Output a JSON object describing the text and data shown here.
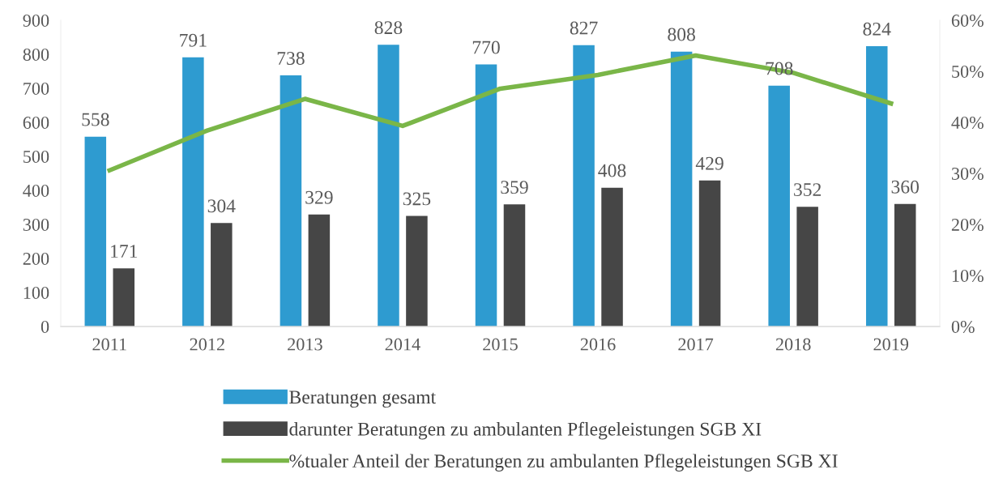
{
  "chart_data": {
    "type": "bar",
    "categories": [
      "2011",
      "2012",
      "2013",
      "2014",
      "2015",
      "2016",
      "2017",
      "2018",
      "2019"
    ],
    "series": [
      {
        "name": "Beratungen gesamt",
        "color": "#2e9bd0",
        "values": [
          558,
          791,
          738,
          828,
          770,
          827,
          808,
          708,
          824
        ],
        "value_labels": [
          "558",
          "791",
          "738",
          "828",
          "770",
          "827",
          "808",
          "708",
          "824"
        ]
      },
      {
        "name": "darunter Beratungen zu ambulanten Pflegeleistungen SGB XI",
        "color": "#464646",
        "values": [
          171,
          304,
          329,
          325,
          359,
          408,
          429,
          352,
          360
        ],
        "value_labels": [
          "171",
          "304",
          "329",
          "325",
          "359",
          "408",
          "429",
          "352",
          "360"
        ]
      },
      {
        "name": "%tualer Anteil der Beratungen zu ambulanten Pflegeleistungen SGB XI",
        "color": "#7ab648",
        "type": "line",
        "axis": "y2",
        "values": [
          30.6,
          38.4,
          44.6,
          39.3,
          46.6,
          49.3,
          53.1,
          49.7,
          43.7
        ]
      }
    ],
    "ylim": [
      0,
      900
    ],
    "yticks": [
      0,
      100,
      200,
      300,
      400,
      500,
      600,
      700,
      800,
      900
    ],
    "y2lim": [
      0,
      60
    ],
    "y2ticks": [
      {
        "value": 0,
        "label": "0%"
      },
      {
        "value": 10,
        "label": "10%"
      },
      {
        "value": 20,
        "label": "20%"
      },
      {
        "value": 30,
        "label": "30%"
      },
      {
        "value": 40,
        "label": "40%"
      },
      {
        "value": 50,
        "label": "50%"
      },
      {
        "value": 60,
        "label": "60%"
      }
    ],
    "grid": false,
    "legend": "bottom",
    "marker": "none",
    "line_style": "solid"
  }
}
